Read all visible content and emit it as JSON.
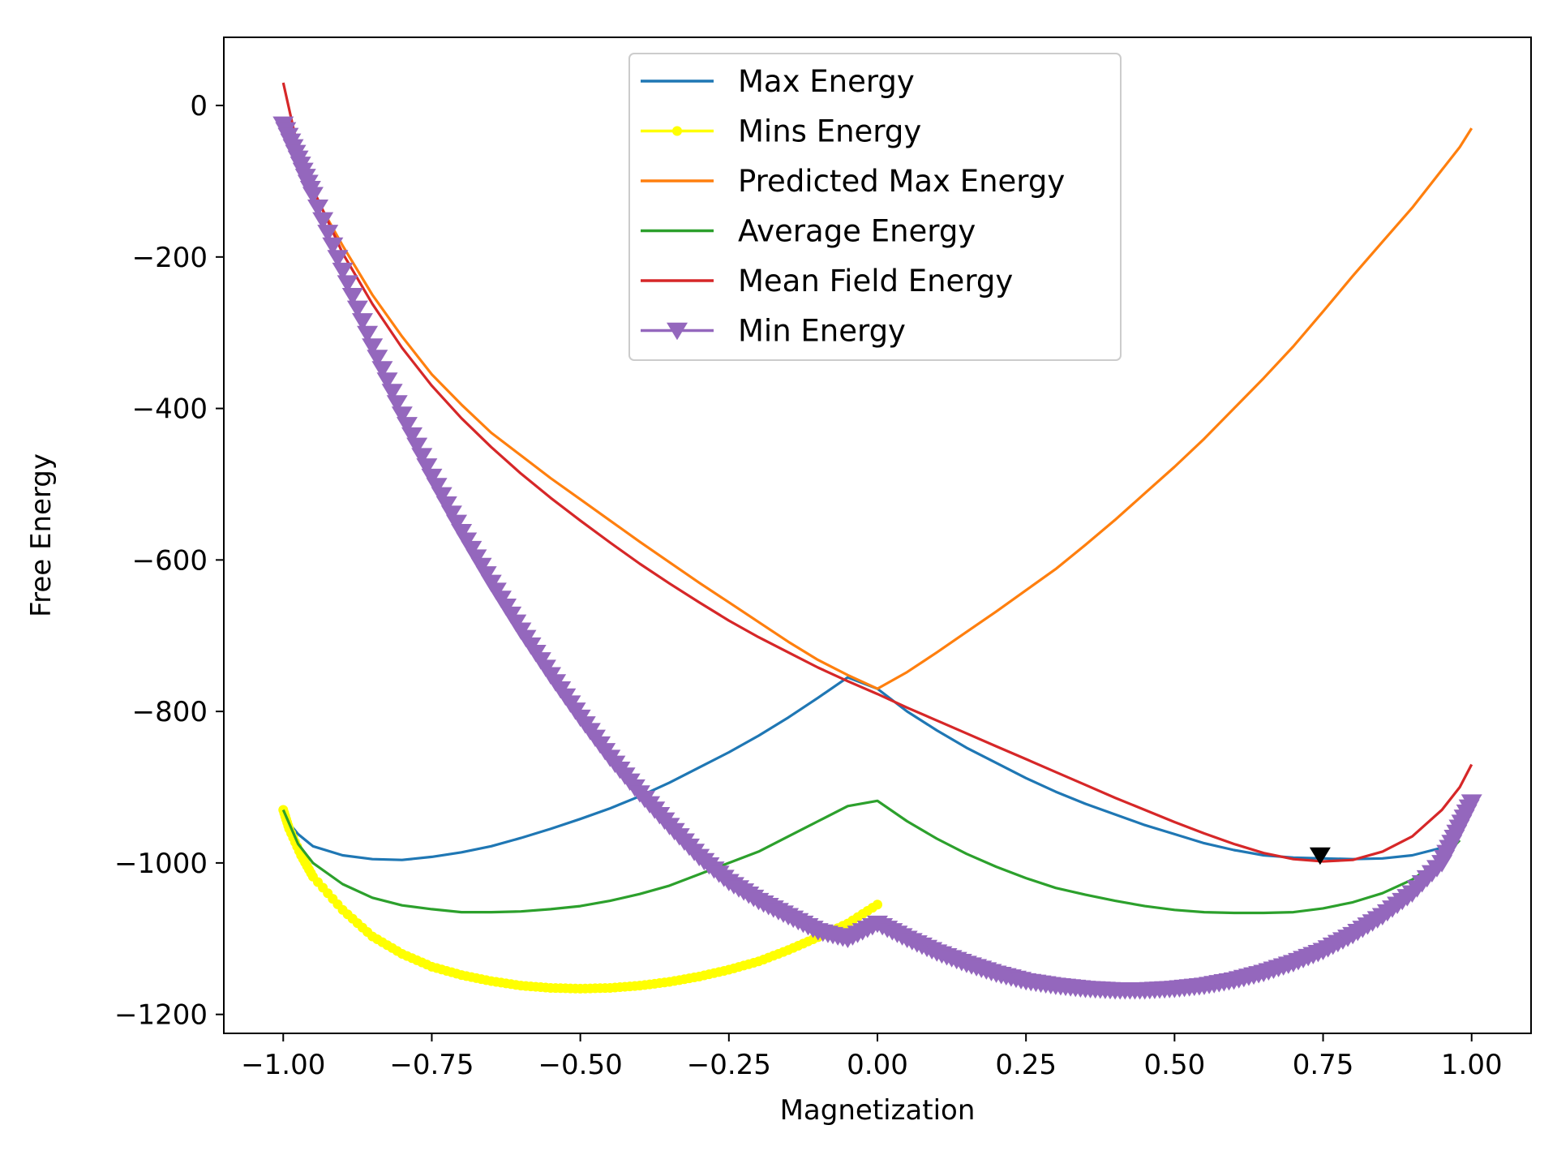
{
  "chart_data": {
    "type": "line",
    "title": "",
    "xlabel": "Magnetization",
    "ylabel": "Free Energy",
    "xlim": [
      -1.1,
      1.1
    ],
    "ylim": [
      -1225,
      90
    ],
    "xticks": [
      -1.0,
      -0.75,
      -0.5,
      -0.25,
      0.0,
      0.25,
      0.5,
      0.75,
      1.0
    ],
    "xtick_labels": [
      "−1.00",
      "−0.75",
      "−0.50",
      "−0.25",
      "0.00",
      "0.25",
      "0.50",
      "0.75",
      "1.00"
    ],
    "yticks": [
      0,
      -200,
      -400,
      -600,
      -800,
      -1000,
      -1200
    ],
    "ytick_labels": [
      "0",
      "−200",
      "−400",
      "−600",
      "−800",
      "−1000",
      "−1200"
    ],
    "grid": false,
    "legend_position": "top-center",
    "series": [
      {
        "name": "Max Energy",
        "color": "#1f77b4",
        "marker": "none",
        "x": [
          -1.0,
          -0.975,
          -0.95,
          -0.9,
          -0.85,
          -0.8,
          -0.75,
          -0.7,
          -0.65,
          -0.6,
          -0.55,
          -0.5,
          -0.45,
          -0.4,
          -0.35,
          -0.3,
          -0.25,
          -0.2,
          -0.15,
          -0.1,
          -0.05,
          0.0,
          0.05,
          0.1,
          0.15,
          0.2,
          0.25,
          0.3,
          0.35,
          0.4,
          0.45,
          0.5,
          0.55,
          0.6,
          0.65,
          0.7,
          0.75,
          0.8,
          0.85,
          0.9,
          0.95,
          0.98
        ],
        "y": [
          -938,
          -962,
          -978,
          -990,
          -995,
          -996,
          -992,
          -986,
          -978,
          -967,
          -955,
          -942,
          -928,
          -912,
          -894,
          -874,
          -854,
          -832,
          -808,
          -782,
          -755,
          -770,
          -800,
          -825,
          -848,
          -868,
          -888,
          -906,
          -922,
          -936,
          -950,
          -962,
          -974,
          -983,
          -990,
          -993,
          -994,
          -995,
          -994,
          -990,
          -980,
          -965
        ]
      },
      {
        "name": "Mins Energy",
        "color": "#ffff00",
        "marker": "dot",
        "x": [
          -1.0,
          -0.99,
          -0.97,
          -0.95,
          -0.9,
          -0.85,
          -0.8,
          -0.75,
          -0.7,
          -0.65,
          -0.6,
          -0.55,
          -0.5,
          -0.45,
          -0.4,
          -0.35,
          -0.3,
          -0.25,
          -0.2,
          -0.15,
          -0.1,
          -0.05,
          0.0
        ],
        "y": [
          -930,
          -955,
          -990,
          -1018,
          -1062,
          -1097,
          -1120,
          -1137,
          -1148,
          -1156,
          -1162,
          -1165,
          -1166,
          -1165,
          -1162,
          -1157,
          -1150,
          -1141,
          -1130,
          -1115,
          -1098,
          -1080,
          -1055
        ]
      },
      {
        "name": "Predicted Max Energy",
        "color": "#ff7f0e",
        "marker": "none",
        "x": [
          -0.98,
          -0.95,
          -0.9,
          -0.85,
          -0.8,
          -0.75,
          -0.7,
          -0.65,
          -0.6,
          -0.55,
          -0.5,
          -0.45,
          -0.4,
          -0.35,
          -0.3,
          -0.25,
          -0.2,
          -0.15,
          -0.1,
          -0.05,
          0.0,
          0.05,
          0.1,
          0.15,
          0.2,
          0.25,
          0.3,
          0.35,
          0.4,
          0.45,
          0.5,
          0.55,
          0.6,
          0.65,
          0.7,
          0.75,
          0.8,
          0.85,
          0.9,
          0.95,
          0.98,
          1.0
        ],
        "y": [
          -60,
          -115,
          -185,
          -250,
          -305,
          -355,
          -395,
          -432,
          -462,
          -492,
          -520,
          -548,
          -576,
          -603,
          -630,
          -656,
          -682,
          -708,
          -732,
          -752,
          -770,
          -748,
          -722,
          -695,
          -668,
          -640,
          -612,
          -580,
          -547,
          -512,
          -477,
          -440,
          -400,
          -360,
          -318,
          -272,
          -225,
          -180,
          -135,
          -85,
          -55,
          -30
        ]
      },
      {
        "name": "Average Energy",
        "color": "#2ca02c",
        "marker": "none",
        "x": [
          -1.0,
          -0.975,
          -0.95,
          -0.9,
          -0.85,
          -0.8,
          -0.75,
          -0.7,
          -0.65,
          -0.6,
          -0.55,
          -0.5,
          -0.45,
          -0.4,
          -0.35,
          -0.3,
          -0.25,
          -0.2,
          -0.15,
          -0.1,
          -0.05,
          0.0,
          0.05,
          0.1,
          0.15,
          0.2,
          0.25,
          0.3,
          0.35,
          0.4,
          0.45,
          0.5,
          0.55,
          0.6,
          0.65,
          0.7,
          0.75,
          0.8,
          0.85,
          0.9,
          0.95,
          0.98
        ],
        "y": [
          -930,
          -975,
          -1000,
          -1028,
          -1046,
          -1056,
          -1061,
          -1065,
          -1065,
          -1064,
          -1061,
          -1057,
          -1050,
          -1041,
          -1030,
          -1015,
          -1000,
          -985,
          -965,
          -945,
          -925,
          -918,
          -945,
          -968,
          -988,
          -1005,
          -1020,
          -1033,
          -1042,
          -1050,
          -1057,
          -1062,
          -1065,
          -1066,
          -1066,
          -1065,
          -1060,
          -1052,
          -1040,
          -1022,
          -995,
          -970
        ]
      },
      {
        "name": "Mean Field Energy",
        "color": "#d62728",
        "marker": "none",
        "x": [
          -1.0,
          -0.98,
          -0.95,
          -0.9,
          -0.85,
          -0.8,
          -0.75,
          -0.7,
          -0.65,
          -0.6,
          -0.55,
          -0.5,
          -0.45,
          -0.4,
          -0.35,
          -0.3,
          -0.25,
          -0.2,
          -0.15,
          -0.1,
          -0.05,
          0.0,
          0.05,
          0.1,
          0.15,
          0.2,
          0.25,
          0.3,
          0.35,
          0.4,
          0.45,
          0.5,
          0.55,
          0.6,
          0.65,
          0.7,
          0.75,
          0.8,
          0.85,
          0.9,
          0.95,
          0.98,
          1.0
        ],
        "y": [
          30,
          -40,
          -110,
          -195,
          -262,
          -320,
          -370,
          -413,
          -451,
          -486,
          -518,
          -548,
          -577,
          -605,
          -631,
          -656,
          -680,
          -702,
          -722,
          -742,
          -760,
          -777,
          -795,
          -812,
          -829,
          -846,
          -863,
          -880,
          -897,
          -914,
          -930,
          -946,
          -961,
          -975,
          -987,
          -995,
          -998,
          -996,
          -985,
          -965,
          -930,
          -900,
          -870
        ]
      },
      {
        "name": "Min Energy",
        "color": "#9467bd",
        "marker": "triangle-down",
        "x": [
          -1.0,
          -0.975,
          -0.95,
          -0.9,
          -0.85,
          -0.8,
          -0.75,
          -0.7,
          -0.65,
          -0.6,
          -0.55,
          -0.5,
          -0.45,
          -0.4,
          -0.35,
          -0.3,
          -0.25,
          -0.2,
          -0.15,
          -0.1,
          -0.05,
          0.0,
          0.05,
          0.1,
          0.15,
          0.2,
          0.25,
          0.3,
          0.35,
          0.4,
          0.45,
          0.5,
          0.55,
          0.6,
          0.65,
          0.7,
          0.75,
          0.8,
          0.85,
          0.9,
          0.95,
          0.975,
          1.0
        ],
        "y": [
          -25,
          -70,
          -118,
          -218,
          -318,
          -408,
          -490,
          -563,
          -630,
          -693,
          -752,
          -808,
          -861,
          -908,
          -951,
          -992,
          -1025,
          -1050,
          -1070,
          -1090,
          -1100,
          -1080,
          -1100,
          -1118,
          -1133,
          -1146,
          -1156,
          -1162,
          -1166,
          -1168,
          -1168,
          -1166,
          -1162,
          -1155,
          -1145,
          -1132,
          -1116,
          -1095,
          -1070,
          -1040,
          -1000,
          -960,
          -920
        ]
      }
    ],
    "annotations": [
      {
        "type": "marker",
        "shape": "triangle-down",
        "color": "#000000",
        "x": 0.745,
        "y": -990
      }
    ]
  }
}
